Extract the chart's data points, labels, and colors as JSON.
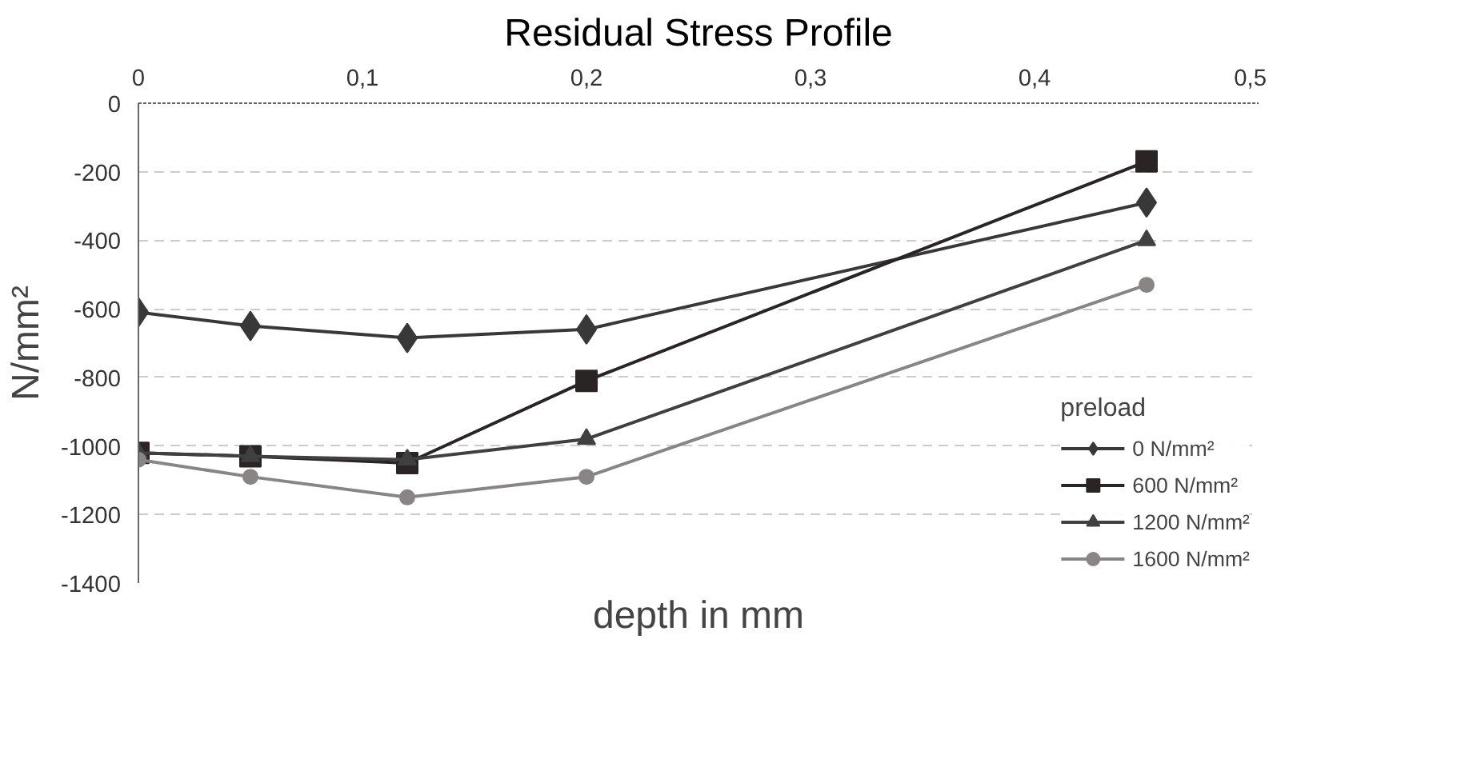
{
  "chart_data": {
    "type": "line",
    "title": "Residual Stress Profile",
    "xlabel": "depth in mm",
    "ylabel": "N/mm²",
    "legend_title": "preload",
    "x": [
      0,
      0.05,
      0.12,
      0.2,
      0.45
    ],
    "xlim": [
      0,
      0.5
    ],
    "xticks": [
      {
        "value": 0,
        "label": "0"
      },
      {
        "value": 0.1,
        "label": "0,1"
      },
      {
        "value": 0.2,
        "label": "0,2"
      },
      {
        "value": 0.3,
        "label": "0,3"
      },
      {
        "value": 0.4,
        "label": "0,4"
      },
      {
        "value": 0.5,
        "label": "0,5"
      }
    ],
    "ylim": [
      -1400,
      0
    ],
    "yticks": [
      0,
      -200,
      -400,
      -600,
      -800,
      -1000,
      -1200,
      -1400
    ],
    "grid": "y",
    "legend": "bottom right",
    "series": [
      {
        "name": "0 N/mm²",
        "color": "#383838",
        "marker": "diamond",
        "values": [
          -610,
          -650,
          -685,
          -660,
          -290
        ]
      },
      {
        "name": "600 N/mm²",
        "color": "#2a2424",
        "marker": "square",
        "values": [
          -1020,
          -1030,
          -1050,
          -810,
          -170
        ]
      },
      {
        "name": "1200 N/mm²",
        "color": "#404040",
        "marker": "triangle",
        "values": [
          -1020,
          -1030,
          -1040,
          -980,
          -400
        ]
      },
      {
        "name": "1600 N/mm²",
        "color": "#8a8585",
        "marker": "circle",
        "values": [
          -1040,
          -1090,
          -1150,
          -1090,
          -530
        ]
      }
    ]
  }
}
